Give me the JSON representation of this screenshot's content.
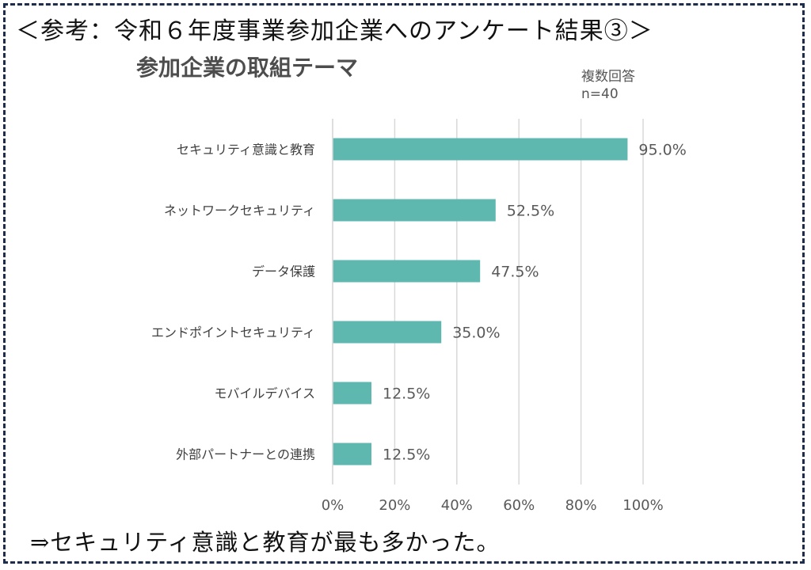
{
  "page": {
    "title": "＜参考：令和６年度事業参加企業へのアンケート結果③＞",
    "conclusion": "⇒セキュリティ意識と教育が最も多かった。"
  },
  "chart_data": {
    "type": "bar",
    "orientation": "horizontal",
    "title": "参加企業の取組テーマ",
    "note_lines": [
      "複数回答",
      "n=40"
    ],
    "categories": [
      "セキュリティ意識と教育",
      "ネットワークセキュリティ",
      "データ保護",
      "エンドポイントセキュリティ",
      "モバイルデバイス",
      "外部パートナーとの連携"
    ],
    "values": [
      95.0,
      52.5,
      47.5,
      35.0,
      12.5,
      12.5
    ],
    "value_labels": [
      "95.0%",
      "52.5%",
      "47.5%",
      "35.0%",
      "12.5%",
      "12.5%"
    ],
    "xlim": [
      0,
      100
    ],
    "x_ticks": [
      0,
      20,
      40,
      60,
      80,
      100
    ],
    "x_tick_labels": [
      "0%",
      "20%",
      "40%",
      "60%",
      "80%",
      "100%"
    ],
    "grid": true,
    "bar_color": "#5fb8b0",
    "grid_color": "#d9d9d9",
    "text_color": "#595959"
  }
}
